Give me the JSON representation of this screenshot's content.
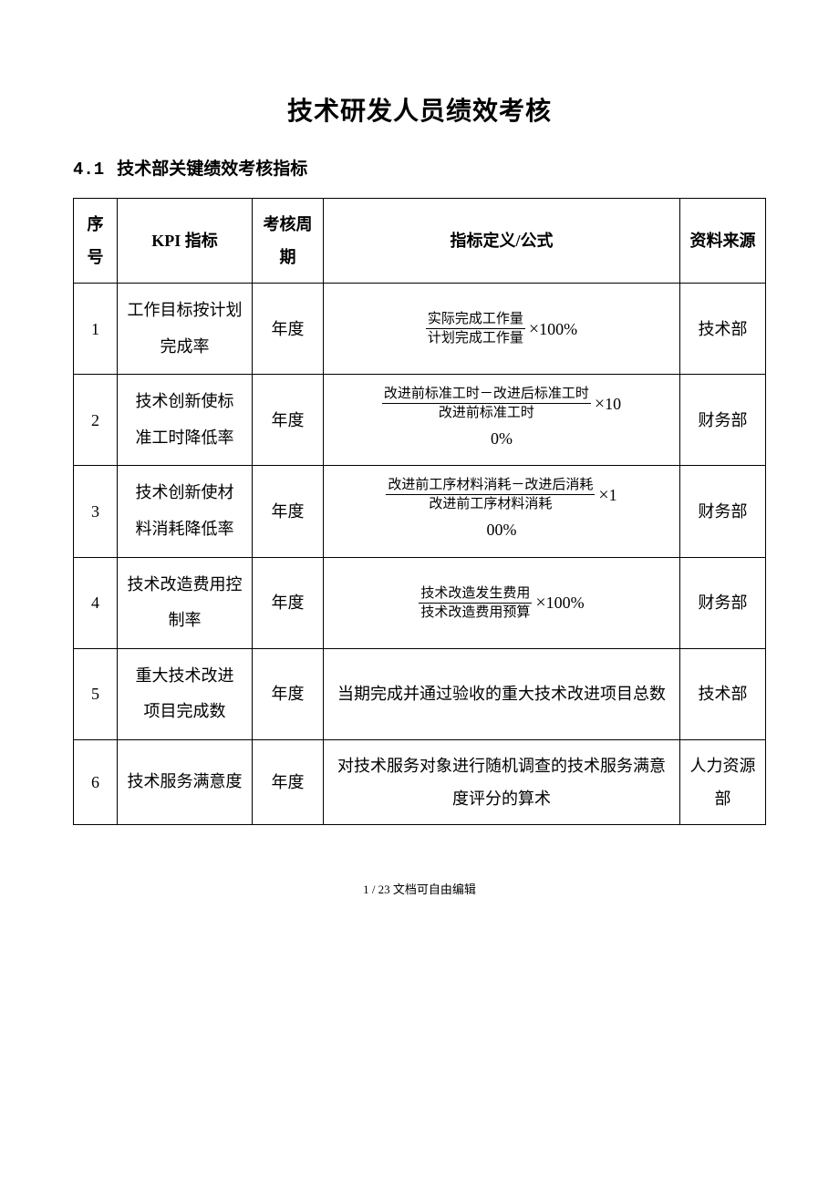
{
  "document": {
    "title": "技术研发人员绩效考核",
    "section_number": "4.1",
    "section_title": "技术部关键绩效考核指标",
    "footer": "1 / 23 文档可自由编辑"
  },
  "table": {
    "headers": {
      "seq": "序号",
      "kpi": "KPI 指标",
      "cycle": "考核周期",
      "definition": "指标定义/公式",
      "source": "资料来源"
    },
    "rows": [
      {
        "seq": "1",
        "kpi": "工作目标按计划完成率",
        "cycle": "年度",
        "formula": {
          "numerator": "实际完成工作量",
          "denominator": "计划完成工作量",
          "operator": "×",
          "suffix": "100%",
          "trailing": ""
        },
        "source": "技术部"
      },
      {
        "seq": "2",
        "kpi": "技术创新使标\n准工时降低率",
        "cycle": "年度",
        "formula": {
          "numerator": "改进前标准工时－改进后标准工时",
          "denominator": "改进前标准工时",
          "operator": "×",
          "suffix": "10",
          "trailing": "0%"
        },
        "source": "财务部"
      },
      {
        "seq": "3",
        "kpi": "技术创新使材\n料消耗降低率",
        "cycle": "年度",
        "formula": {
          "numerator": "改进前工序材料消耗－改进后消耗",
          "denominator": "改进前工序材料消耗",
          "operator": "×",
          "suffix": "1",
          "trailing": "00%"
        },
        "source": "财务部"
      },
      {
        "seq": "4",
        "kpi": "技术改造费用控制率",
        "cycle": "年度",
        "formula": {
          "numerator": "技术改造发生费用",
          "denominator": "技术改造费用预算",
          "operator": "×",
          "suffix": "100%",
          "trailing": ""
        },
        "source": "财务部"
      },
      {
        "seq": "5",
        "kpi": "重大技术改进\n项目完成数",
        "cycle": "年度",
        "plain": "当期完成并通过验收的重大技术改进项目总数",
        "source": "技术部"
      },
      {
        "seq": "6",
        "kpi": "技术服务满意度",
        "cycle": "年度",
        "plain": "对技术服务对象进行随机调查的技术服务满意度评分的算术",
        "source": "人力资源部"
      }
    ]
  },
  "style": {
    "background_color": "#ffffff",
    "text_color": "#000000",
    "border_color": "#000000",
    "title_fontsize": 28,
    "heading_fontsize": 19,
    "cell_fontsize": 18,
    "frac_fontsize": 15,
    "footer_fontsize": 13
  }
}
